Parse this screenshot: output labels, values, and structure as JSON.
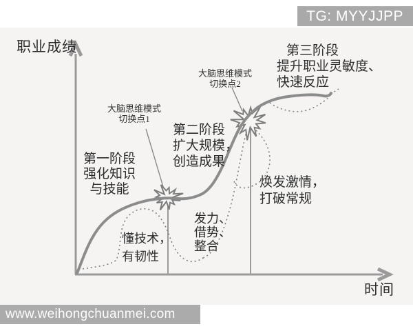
{
  "header": {
    "badge": "TG: MYYJJPP"
  },
  "footer": {
    "watermark": "www.weihongchuanmei.com"
  },
  "diagram": {
    "y_axis_label": "职业成绩",
    "x_axis_label": "时间",
    "stage1": {
      "l1": "第一阶段",
      "l2": "强化知识",
      "l3": "与技能"
    },
    "stage2": {
      "l1": "第二阶段",
      "l2": "扩大规模，",
      "l3": "创造成果"
    },
    "stage3": {
      "l1": "第三阶段",
      "l2": "提升职业灵敏度、",
      "l3": "快速反应"
    },
    "switch1": {
      "l1": "大脑思维模式",
      "l2": "切换点1"
    },
    "switch2": {
      "l1": "大脑思维模式",
      "l2": "切换点2"
    },
    "note_stage1": {
      "l1": "懂技术，",
      "l2": "有韧性"
    },
    "note_stage2": {
      "l1": "发力、",
      "l2": "借势、",
      "l3": "整合"
    },
    "note_stage3": {
      "l1": "焕发激情，",
      "l2": "打破常规"
    },
    "colors": {
      "curve": "#8c8c8c",
      "axis": "#9a9a9a",
      "dotted": "#7e7e7e",
      "starburst_stroke": "#7d7d7d",
      "panel_bg": "#f5f4f2",
      "banner_bg": "#a9a9a9",
      "text": "#2d2d2d"
    }
  }
}
